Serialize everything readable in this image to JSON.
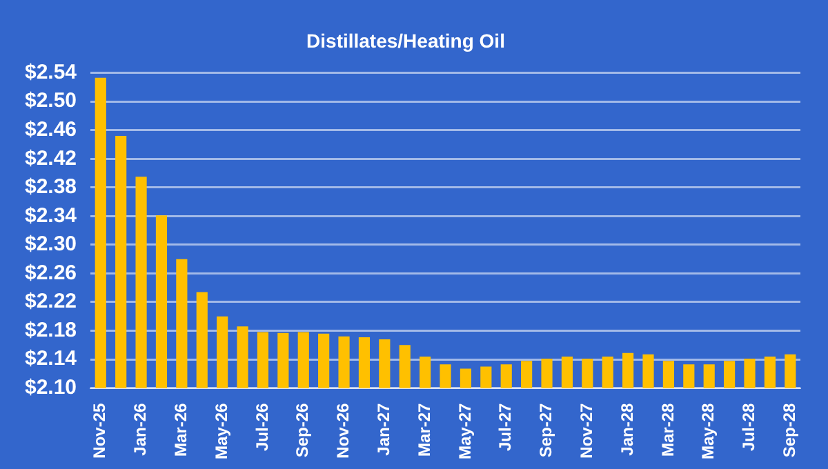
{
  "chart_data": {
    "type": "bar",
    "title": "Distillates/Heating Oil",
    "categories": [
      "Nov-25",
      null,
      "Jan-26",
      null,
      "Mar-26",
      null,
      "May-26",
      null,
      "Jul-26",
      null,
      "Sep-26",
      null,
      "Nov-26",
      null,
      "Jan-27",
      null,
      "Mar-27",
      null,
      "May-27",
      null,
      "Jul-27",
      null,
      "Sep-27",
      null,
      "Nov-27",
      null,
      "Jan-28",
      null,
      "Mar-28",
      null,
      "May-28",
      null,
      "Jul-28",
      null,
      "Sep-28"
    ],
    "values": [
      2.533,
      2.452,
      2.395,
      2.341,
      2.28,
      2.234,
      2.2,
      2.186,
      2.178,
      2.177,
      2.178,
      2.176,
      2.172,
      2.171,
      2.168,
      2.16,
      2.144,
      2.133,
      2.127,
      2.13,
      2.133,
      2.138,
      2.141,
      2.144,
      2.141,
      2.144,
      2.149,
      2.147,
      2.138,
      2.133,
      2.133,
      2.138,
      2.141,
      2.144,
      2.147
    ],
    "color": "#ffc000",
    "ylim": [
      2.1,
      2.54
    ],
    "yticks": [
      {
        "value": 2.1,
        "label": "$2.10"
      },
      {
        "value": 2.14,
        "label": "$2.14"
      },
      {
        "value": 2.18,
        "label": "$2.18"
      },
      {
        "value": 2.22,
        "label": "$2.22"
      },
      {
        "value": 2.26,
        "label": "$2.26"
      },
      {
        "value": 2.3,
        "label": "$2.30"
      },
      {
        "value": 2.34,
        "label": "$2.34"
      },
      {
        "value": 2.38,
        "label": "$2.38"
      },
      {
        "value": 2.42,
        "label": "$2.42"
      },
      {
        "value": 2.46,
        "label": "$2.46"
      },
      {
        "value": 2.5,
        "label": "$2.50"
      },
      {
        "value": 2.54,
        "label": "$2.54"
      }
    ],
    "grid": "y",
    "legend": false
  }
}
